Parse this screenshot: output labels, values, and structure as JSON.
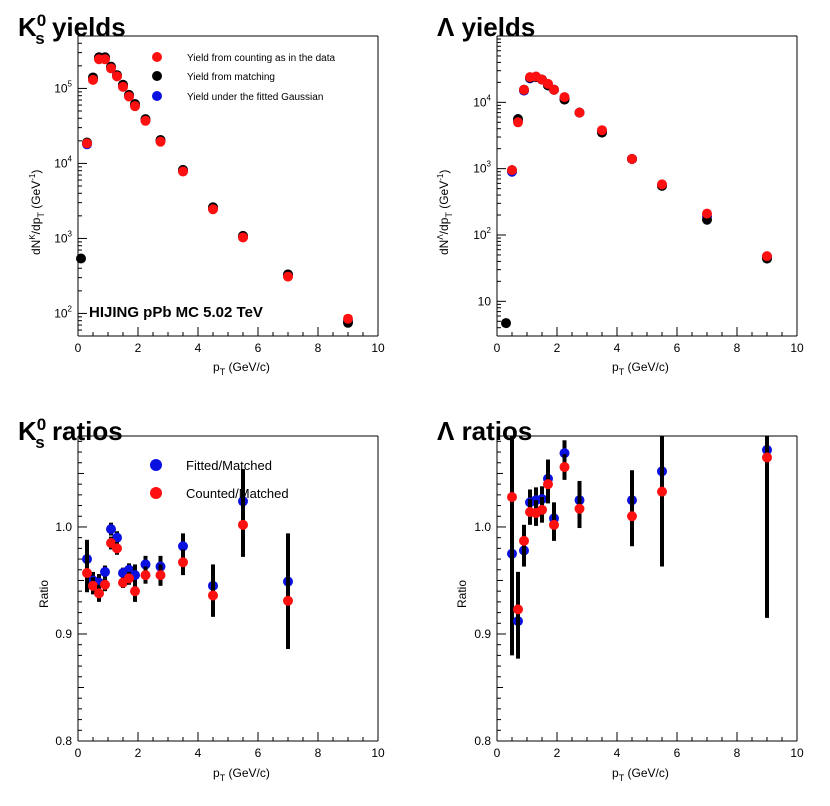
{
  "colors": {
    "red": "#ff1010",
    "black": "#000000",
    "blue": "#0a10e0"
  },
  "chart_data": [
    {
      "id": "k0s_yields",
      "type": "scatter",
      "title_main": "K",
      "title_sup": "0",
      "title_sub": "s",
      "title_rest": " yields",
      "xlabel_main": "p",
      "xlabel_sub": "T",
      "xlabel_rest": " (GeV/c)",
      "ylabel": "dN/dp_T (GeV^-1)",
      "xlim": [
        0,
        10
      ],
      "ylim": [
        50,
        500000
      ],
      "yscale": "log",
      "xticks": [
        "0",
        "2",
        "4",
        "6",
        "8",
        "10"
      ],
      "yticks": [
        {
          "base": "10",
          "exp": "2",
          "v": 100
        },
        {
          "base": "10",
          "exp": "3",
          "v": 1000
        },
        {
          "base": "10",
          "exp": "4",
          "v": 10000
        },
        {
          "base": "10",
          "exp": "5",
          "v": 100000
        }
      ],
      "annotation": "HIJING pPb MC 5.02 TeV",
      "legend": [
        "Yield from counting as in the data",
        "Yield from matching",
        "Yield under the fitted Gaussian"
      ],
      "series": [
        {
          "name": "Yield under the fitted Gaussian",
          "color": "#0a10e0",
          "x": [
            0.3,
            0.5,
            0.7,
            0.9,
            1.1,
            1.3,
            1.5,
            1.7,
            1.9,
            2.25,
            2.75,
            3.5,
            4.5,
            5.5,
            7.0,
            9.0
          ],
          "y": [
            18000,
            135000,
            250000,
            250000,
            190000,
            150000,
            110000,
            80000,
            60000,
            38000,
            20000,
            8000,
            2500,
            1050,
            330,
            80
          ]
        },
        {
          "name": "Yield from matching",
          "color": "#000000",
          "x": [
            0.1,
            0.3,
            0.5,
            0.7,
            0.9,
            1.1,
            1.3,
            1.5,
            1.7,
            1.9,
            2.25,
            2.75,
            3.5,
            4.5,
            5.5,
            7.0,
            9.0
          ],
          "y": [
            540,
            19000,
            140000,
            260000,
            260000,
            195000,
            150000,
            112000,
            82000,
            62000,
            39000,
            20500,
            8200,
            2600,
            1080,
            330,
            75
          ]
        },
        {
          "name": "Yield from counting as in the data",
          "color": "#ff1010",
          "x": [
            0.3,
            0.5,
            0.7,
            0.9,
            1.1,
            1.3,
            1.5,
            1.7,
            1.9,
            2.25,
            2.75,
            3.5,
            4.5,
            5.5,
            7.0,
            9.0
          ],
          "y": [
            18500,
            130000,
            245000,
            245000,
            185000,
            145000,
            105000,
            78000,
            58000,
            37000,
            19500,
            7800,
            2450,
            1030,
            310,
            85
          ]
        }
      ]
    },
    {
      "id": "lambda_yields",
      "type": "scatter",
      "title_main": "Λ yields",
      "xlabel_main": "p",
      "xlabel_sub": "T",
      "xlabel_rest": " (GeV/c)",
      "ylabel": "dN/dp_T (GeV^-1)",
      "xlim": [
        0,
        10
      ],
      "ylim": [
        3,
        100000
      ],
      "yscale": "log",
      "xticks": [
        "0",
        "2",
        "4",
        "6",
        "8",
        "10"
      ],
      "yticks": [
        {
          "base": "10",
          "exp": "",
          "v": 10
        },
        {
          "base": "10",
          "exp": "2",
          "v": 100
        },
        {
          "base": "10",
          "exp": "3",
          "v": 1000
        },
        {
          "base": "10",
          "exp": "4",
          "v": 10000
        }
      ],
      "series": [
        {
          "name": "Yield under the fitted Gaussian",
          "color": "#0a10e0",
          "x": [
            0.5,
            0.7,
            0.9,
            1.1,
            1.3,
            1.5,
            1.7,
            1.9,
            2.25,
            2.75,
            3.5,
            4.5,
            5.5,
            7.0,
            9.0
          ],
          "y": [
            900,
            5400,
            15000,
            23000,
            24000,
            22000,
            18000,
            15500,
            11500,
            7000,
            3700,
            1400,
            560,
            190,
            46
          ]
        },
        {
          "name": "Yield from matching",
          "color": "#000000",
          "x": [
            0.3,
            0.5,
            0.7,
            0.9,
            1.1,
            1.3,
            1.5,
            1.7,
            1.9,
            2.25,
            2.75,
            3.5,
            4.5,
            5.5,
            7.0,
            9.0
          ],
          "y": [
            4.7,
            950,
            5600,
            15500,
            23500,
            24000,
            22000,
            18000,
            15500,
            11000,
            7000,
            3500,
            1400,
            550,
            170,
            44
          ]
        },
        {
          "name": "Yield from counting as in the data",
          "color": "#ff1010",
          "x": [
            0.5,
            0.7,
            0.9,
            1.1,
            1.3,
            1.5,
            1.7,
            1.9,
            2.25,
            2.75,
            3.5,
            4.5,
            5.5,
            7.0,
            9.0
          ],
          "y": [
            950,
            5000,
            15500,
            24000,
            24500,
            22000,
            19000,
            15500,
            12000,
            7000,
            3800,
            1400,
            580,
            210,
            48
          ]
        }
      ]
    },
    {
      "id": "k0s_ratios",
      "type": "scatter",
      "title_main": "K",
      "title_sup": "0",
      "title_sub": "s",
      "title_rest": " ratios",
      "xlabel_main": "p",
      "xlabel_sub": "T",
      "xlabel_rest": " (GeV/c)",
      "ylabel": "Ratio",
      "xlim": [
        0,
        10
      ],
      "ylim": [
        0.8,
        1.085
      ],
      "yscale": "linear",
      "xticks": [
        "0",
        "2",
        "4",
        "6",
        "8",
        "10"
      ],
      "yticks": [
        {
          "label": "0.8",
          "v": 0.8
        },
        {
          "label": "0.9",
          "v": 0.9
        },
        {
          "label": "1.0",
          "v": 1.0
        }
      ],
      "legend": [
        "Fitted/Matched",
        "Counted/Matched"
      ],
      "series": [
        {
          "name": "Fitted/Matched",
          "color": "#0a10e0",
          "x": [
            0.3,
            0.5,
            0.7,
            0.9,
            1.1,
            1.3,
            1.5,
            1.7,
            1.9,
            2.25,
            2.75,
            3.5,
            4.5,
            5.5,
            7.0
          ],
          "y": [
            0.97,
            0.95,
            0.948,
            0.958,
            0.998,
            0.99,
            0.957,
            0.96,
            0.955,
            0.965,
            0.963,
            0.982,
            0.945,
            1.024,
            0.949
          ],
          "err": [
            0.018,
            0.008,
            0.008,
            0.006,
            0.006,
            0.006,
            0.005,
            0.006,
            0.01,
            0.008,
            0.01,
            0.012,
            0.02,
            0.03,
            0.045
          ]
        },
        {
          "name": "Counted/Matched",
          "color": "#ff1010",
          "x": [
            0.3,
            0.5,
            0.7,
            0.9,
            1.1,
            1.3,
            1.5,
            1.7,
            1.9,
            2.25,
            2.75,
            3.5,
            4.5,
            5.5,
            7.0
          ],
          "y": [
            0.957,
            0.945,
            0.938,
            0.946,
            0.985,
            0.98,
            0.948,
            0.952,
            0.94,
            0.955,
            0.955,
            0.967,
            0.936,
            1.002,
            0.931
          ],
          "err": [
            0.018,
            0.008,
            0.008,
            0.006,
            0.006,
            0.006,
            0.005,
            0.006,
            0.01,
            0.008,
            0.01,
            0.012,
            0.02,
            0.03,
            0.045
          ]
        }
      ]
    },
    {
      "id": "lambda_ratios",
      "type": "scatter",
      "title_main": "Λ ratios",
      "xlabel_main": "p",
      "xlabel_sub": "T",
      "xlabel_rest": " (GeV/c)",
      "ylabel": "Ratio",
      "xlim": [
        0,
        10
      ],
      "ylim": [
        0.8,
        1.085
      ],
      "yscale": "linear",
      "xticks": [
        "0",
        "2",
        "4",
        "6",
        "8",
        "10"
      ],
      "yticks": [
        {
          "label": "0.8",
          "v": 0.8
        },
        {
          "label": "0.9",
          "v": 0.9
        },
        {
          "label": "1.0",
          "v": 1.0
        }
      ],
      "series": [
        {
          "name": "Fitted/Matched",
          "color": "#0a10e0",
          "x": [
            0.5,
            0.7,
            0.9,
            1.1,
            1.3,
            1.5,
            1.7,
            1.9,
            2.25,
            2.75,
            4.5,
            5.5,
            9.0
          ],
          "y": [
            0.975,
            0.912,
            0.978,
            1.023,
            1.025,
            1.026,
            1.045,
            1.008,
            1.069,
            1.025,
            1.025,
            1.052,
            1.072
          ],
          "err": [
            0.095,
            0.035,
            0.015,
            0.012,
            0.012,
            0.012,
            0.018,
            0.015,
            0.012,
            0.018,
            0.028,
            0.07,
            0.15
          ]
        },
        {
          "name": "Counted/Matched",
          "color": "#ff1010",
          "x": [
            0.5,
            0.7,
            0.9,
            1.1,
            1.3,
            1.5,
            1.7,
            1.9,
            2.25,
            2.75,
            4.5,
            5.5,
            9.0
          ],
          "y": [
            1.028,
            0.923,
            0.987,
            1.014,
            1.013,
            1.016,
            1.04,
            1.002,
            1.056,
            1.017,
            1.01,
            1.033,
            1.065
          ],
          "err": [
            0.095,
            0.035,
            0.015,
            0.012,
            0.012,
            0.012,
            0.018,
            0.015,
            0.012,
            0.018,
            0.028,
            0.07,
            0.15
          ]
        }
      ]
    }
  ]
}
